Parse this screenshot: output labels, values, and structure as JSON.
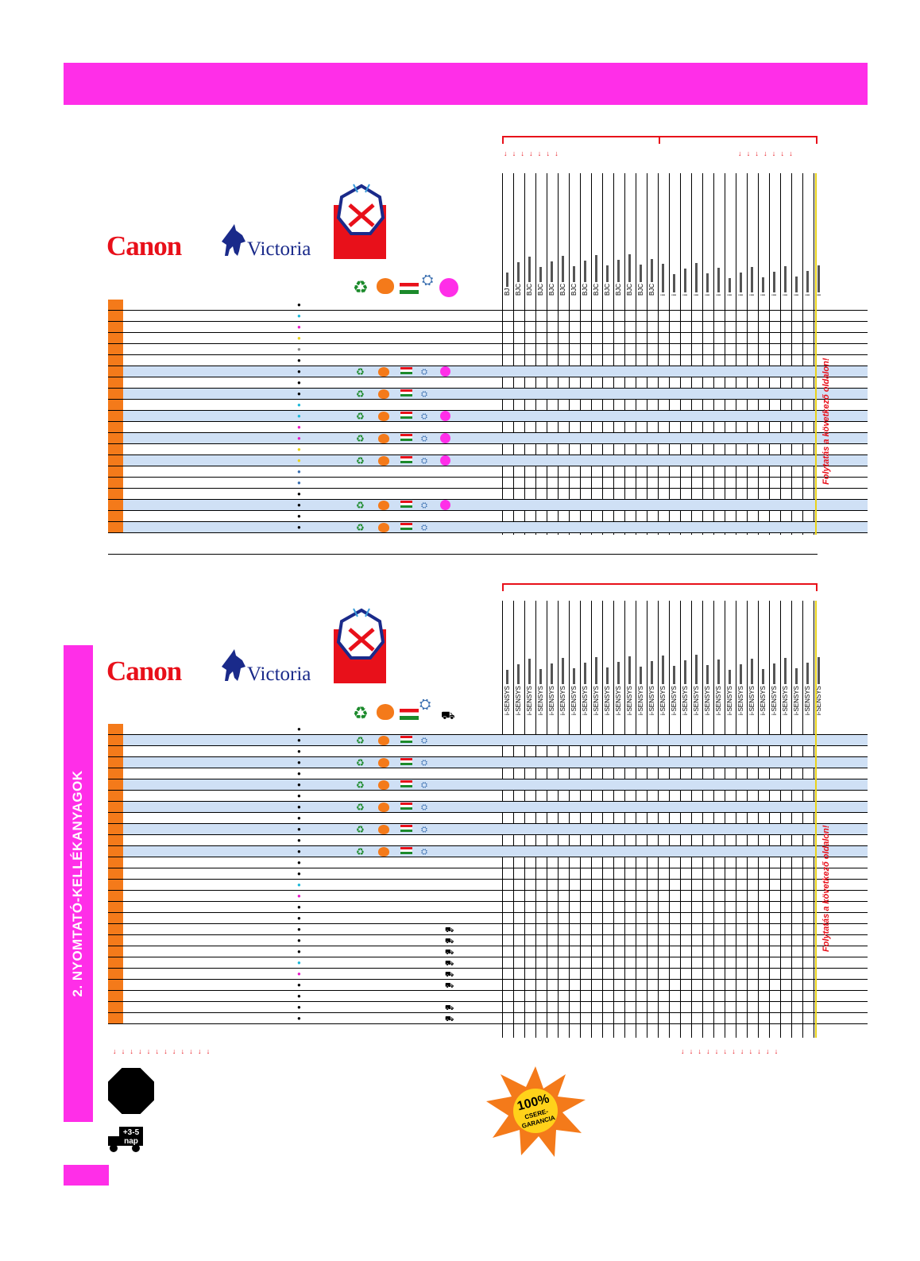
{
  "page": {
    "section_title": "2. NYOMTATÓ-KELLÉKANYAGOK",
    "logos": {
      "canon": "Canon",
      "victoria": "Victoria"
    },
    "continue_note": "Folytatás a következő oldalon!",
    "guarantee": {
      "line1": "100%",
      "line2": "CSERE-",
      "line3": "GARANCIA"
    },
    "delivery": {
      "line1": "+3-5",
      "line2": "nap"
    }
  },
  "table1": {
    "columns": [
      "BJ",
      "BJC",
      "BJC",
      "BJC",
      "BJC",
      "BJC",
      "BJC",
      "BJC",
      "BJC",
      "BJC",
      "BJC",
      "BJC",
      "BJC",
      "BJC",
      "i",
      "i",
      "i",
      "i",
      "i",
      "i",
      "i",
      "i",
      "i",
      "i",
      "i",
      "i",
      "i",
      "i",
      "i"
    ],
    "rows": [
      {
        "drop": "black",
        "icons": false,
        "dot": false
      },
      {
        "drop": "cyan",
        "icons": false,
        "dot": false
      },
      {
        "drop": "magenta",
        "icons": false,
        "dot": false
      },
      {
        "drop": "yellow",
        "icons": false,
        "dot": false
      },
      {
        "drop": "gray",
        "icons": false,
        "dot": false
      },
      {
        "drop": "black",
        "icons": false,
        "dot": false
      },
      {
        "drop": "black",
        "icons": true,
        "dot": true
      },
      {
        "drop": "black",
        "icons": false,
        "dot": false
      },
      {
        "drop": "black",
        "icons": true,
        "dot": false
      },
      {
        "drop": "cyan",
        "icons": false,
        "dot": false
      },
      {
        "drop": "cyan",
        "icons": true,
        "dot": true
      },
      {
        "drop": "magenta",
        "icons": false,
        "dot": false
      },
      {
        "drop": "magenta",
        "icons": true,
        "dot": true
      },
      {
        "drop": "yellow",
        "icons": false,
        "dot": false
      },
      {
        "drop": "yellow",
        "icons": true,
        "dot": true
      },
      {
        "drop": "multi",
        "icons": false,
        "dot": false
      },
      {
        "drop": "multi",
        "icons": false,
        "dot": false
      },
      {
        "drop": "black",
        "icons": false,
        "dot": false
      },
      {
        "drop": "black",
        "icons": true,
        "dot": true
      },
      {
        "drop": "black",
        "icons": false,
        "dot": false
      },
      {
        "drop": "black",
        "icons": true,
        "dot": false
      }
    ]
  },
  "table2": {
    "column_label": "i-SENSYS",
    "column_count": 29,
    "rows": [
      {
        "drop": "black",
        "icons": false,
        "truck": false
      },
      {
        "drop": "black",
        "icons": true,
        "truck": false
      },
      {
        "drop": "black",
        "icons": false,
        "truck": false
      },
      {
        "drop": "black",
        "icons": true,
        "truck": false
      },
      {
        "drop": "black",
        "icons": false,
        "truck": false
      },
      {
        "drop": "black",
        "icons": true,
        "truck": false
      },
      {
        "drop": "black",
        "icons": false,
        "truck": false
      },
      {
        "drop": "black",
        "icons": true,
        "truck": false
      },
      {
        "drop": "black",
        "icons": false,
        "truck": false
      },
      {
        "drop": "black",
        "icons": true,
        "truck": false
      },
      {
        "drop": "black",
        "icons": false,
        "truck": false
      },
      {
        "drop": "black",
        "icons": true,
        "truck": false
      },
      {
        "drop": "black",
        "icons": false,
        "truck": false
      },
      {
        "drop": "black",
        "icons": false,
        "truck": false
      },
      {
        "drop": "cyan",
        "icons": false,
        "truck": false
      },
      {
        "drop": "magenta",
        "icons": false,
        "truck": false
      },
      {
        "drop": "black",
        "icons": false,
        "truck": false
      },
      {
        "drop": "black",
        "icons": false,
        "truck": false
      },
      {
        "drop": "black",
        "icons": false,
        "truck": true
      },
      {
        "drop": "black",
        "icons": false,
        "truck": true
      },
      {
        "drop": "black",
        "icons": false,
        "truck": true
      },
      {
        "drop": "cyan",
        "icons": false,
        "truck": true
      },
      {
        "drop": "magenta",
        "icons": false,
        "truck": true
      },
      {
        "drop": "black",
        "icons": false,
        "truck": true
      },
      {
        "drop": "black",
        "icons": false,
        "truck": false
      },
      {
        "drop": "black",
        "icons": false,
        "truck": true
      },
      {
        "drop": "black",
        "icons": false,
        "truck": true
      }
    ]
  },
  "colors": {
    "magenta": "#ff2ee8",
    "orange": "#f47a1a",
    "red": "#e8101a",
    "shade": "#cfe0f5",
    "yellow_line": "#e8d21a"
  }
}
